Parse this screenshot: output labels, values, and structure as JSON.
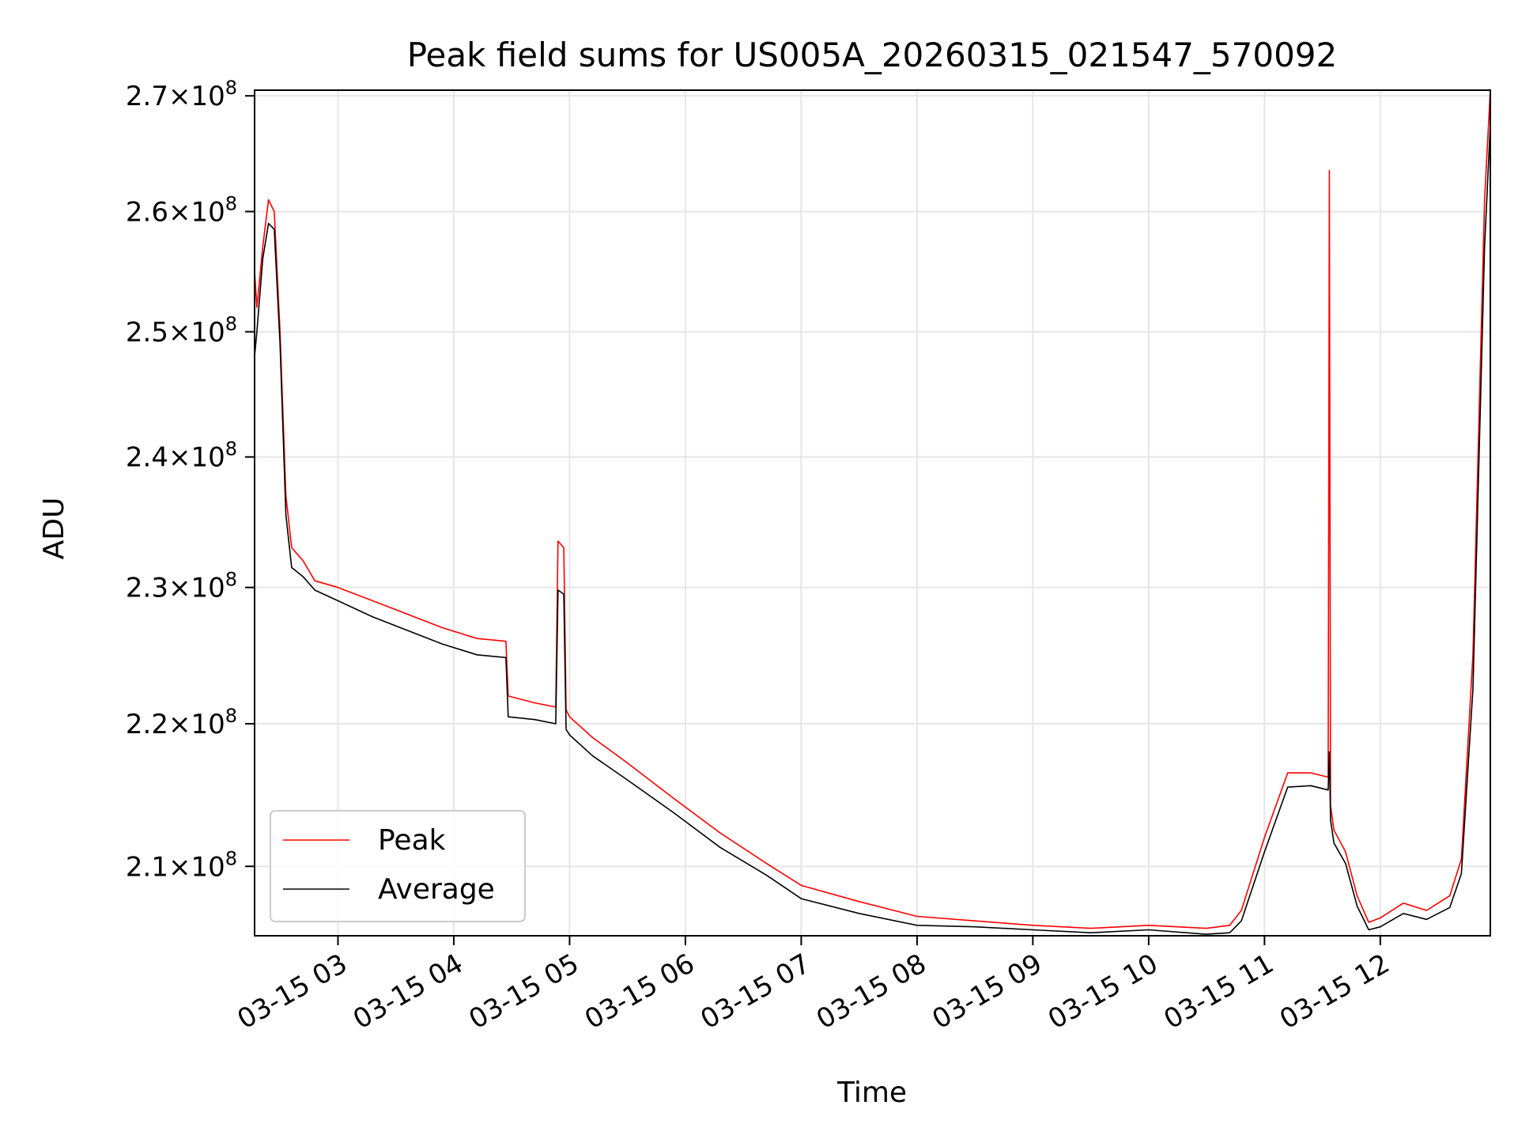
{
  "chart_data": {
    "type": "line",
    "title": "Peak field sums for US005A_20260315_021547_570092",
    "xlabel": "Time",
    "ylabel": "ADU",
    "x_unit": "hours since 03-15 00:00",
    "xlim": [
      2.28,
      12.95
    ],
    "ylim": [
      205300000,
      270500000
    ],
    "yscale": "log",
    "grid": true,
    "x_ticks": [
      {
        "value": 3,
        "label": "03-15 03"
      },
      {
        "value": 4,
        "label": "03-15 04"
      },
      {
        "value": 5,
        "label": "03-15 05"
      },
      {
        "value": 6,
        "label": "03-15 06"
      },
      {
        "value": 7,
        "label": "03-15 07"
      },
      {
        "value": 8,
        "label": "03-15 08"
      },
      {
        "value": 9,
        "label": "03-15 09"
      },
      {
        "value": 10,
        "label": "03-15 10"
      },
      {
        "value": 11,
        "label": "03-15 11"
      },
      {
        "value": 12,
        "label": "03-15 12"
      }
    ],
    "y_ticks": [
      {
        "value": 210000000,
        "mantissa": "2.1",
        "base": "10",
        "exp": "8"
      },
      {
        "value": 220000000,
        "mantissa": "2.2",
        "base": "10",
        "exp": "8"
      },
      {
        "value": 230000000,
        "mantissa": "2.3",
        "base": "10",
        "exp": "8"
      },
      {
        "value": 240000000,
        "mantissa": "2.4",
        "base": "10",
        "exp": "8"
      },
      {
        "value": 250000000,
        "mantissa": "2.5",
        "base": "10",
        "exp": "8"
      },
      {
        "value": 260000000,
        "mantissa": "2.6",
        "base": "10",
        "exp": "8"
      },
      {
        "value": 270000000,
        "mantissa": "2.7",
        "base": "10",
        "exp": "8"
      }
    ],
    "legend_position": "lower-left",
    "series": [
      {
        "name": "Peak",
        "color": "#ff0000",
        "x": [
          2.28,
          2.3,
          2.35,
          2.4,
          2.45,
          2.5,
          2.55,
          2.6,
          2.7,
          2.8,
          3.0,
          3.3,
          3.6,
          3.9,
          4.2,
          4.45,
          4.47,
          4.7,
          4.88,
          4.9,
          4.95,
          4.97,
          5.0,
          5.2,
          5.5,
          5.9,
          6.3,
          6.7,
          7.0,
          7.5,
          8.0,
          8.5,
          9.0,
          9.5,
          10.0,
          10.5,
          10.7,
          10.8,
          11.0,
          11.2,
          11.4,
          11.55,
          11.56,
          11.57,
          11.6,
          11.7,
          11.8,
          11.9,
          12.0,
          12.2,
          12.4,
          12.6,
          12.7,
          12.8,
          12.9,
          12.95
        ],
        "values": [
          255000000,
          252000000,
          257000000,
          261000000,
          260000000,
          250000000,
          237000000,
          233000000,
          232000000,
          230500000,
          230000000,
          229000000,
          228000000,
          227000000,
          226200000,
          226000000,
          222000000,
          221500000,
          221200000,
          233500000,
          233000000,
          221000000,
          220500000,
          219000000,
          217200000,
          214700000,
          212300000,
          210200000,
          208700000,
          207600000,
          206600000,
          206300000,
          206000000,
          205800000,
          206000000,
          205800000,
          206000000,
          207000000,
          212000000,
          216500000,
          216500000,
          216200000,
          263500000,
          214200000,
          212500000,
          211000000,
          208000000,
          206200000,
          206500000,
          207500000,
          207000000,
          208000000,
          210500000,
          225000000,
          261000000,
          270500000
        ]
      },
      {
        "name": "Average",
        "color": "#000000",
        "x": [
          2.28,
          2.3,
          2.35,
          2.4,
          2.45,
          2.5,
          2.55,
          2.6,
          2.7,
          2.8,
          3.0,
          3.3,
          3.6,
          3.9,
          4.2,
          4.45,
          4.47,
          4.7,
          4.88,
          4.9,
          4.95,
          4.97,
          5.0,
          5.2,
          5.5,
          5.9,
          6.3,
          6.7,
          7.0,
          7.5,
          8.0,
          8.5,
          9.0,
          9.5,
          10.0,
          10.5,
          10.7,
          10.8,
          11.0,
          11.2,
          11.4,
          11.55,
          11.56,
          11.57,
          11.6,
          11.7,
          11.8,
          11.9,
          12.0,
          12.2,
          12.4,
          12.6,
          12.7,
          12.8,
          12.9,
          12.95
        ],
        "values": [
          248000000,
          250000000,
          256000000,
          259000000,
          258500000,
          249000000,
          235500000,
          231500000,
          230800000,
          229800000,
          229000000,
          227800000,
          226800000,
          225800000,
          225000000,
          224800000,
          220500000,
          220300000,
          220000000,
          229800000,
          229500000,
          219600000,
          219200000,
          217700000,
          216000000,
          213700000,
          211300000,
          209400000,
          207800000,
          206800000,
          206000000,
          205900000,
          205700000,
          205500000,
          205700000,
          205400000,
          205500000,
          206300000,
          211000000,
          215500000,
          215600000,
          215300000,
          218000000,
          213200000,
          211600000,
          210200000,
          207300000,
          205700000,
          205900000,
          206800000,
          206400000,
          207200000,
          209500000,
          222500000,
          257000000,
          267500000
        ]
      }
    ]
  }
}
